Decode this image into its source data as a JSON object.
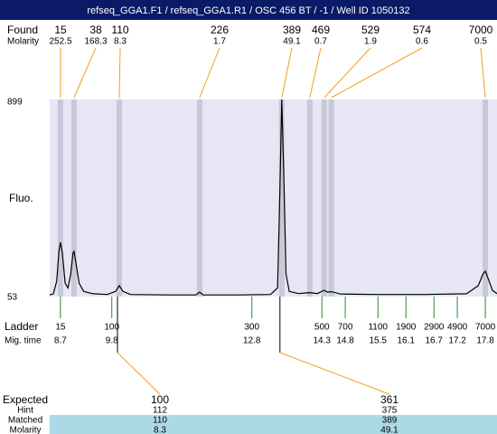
{
  "title": "refseq_GGA1.F1 / refseq_GGA1.R1 / OSC 456 BT / -1 / Well ID 1050132",
  "chart_data": {
    "type": "line",
    "ylabel": "Fluo.",
    "ylim": [
      53,
      899
    ],
    "yticks": [
      53,
      899
    ],
    "xlim": [
      8.47,
      18.05
    ],
    "color": "#000000",
    "band_color": "#c8c8d8",
    "plot_bg": "#e6e6f5",
    "x": [
      8.47,
      8.55,
      8.62,
      8.67,
      8.7,
      8.74,
      8.8,
      8.86,
      8.92,
      8.97,
      8.99,
      9.03,
      9.1,
      9.2,
      9.4,
      9.7,
      9.88,
      9.96,
      10.04,
      10.2,
      11.0,
      11.6,
      11.68,
      11.76,
      12.5,
      13.2,
      13.35,
      13.4,
      13.44,
      13.48,
      13.53,
      13.6,
      13.8,
      14.04,
      14.2,
      14.35,
      14.42,
      14.5,
      14.7,
      15.5,
      16.5,
      17.4,
      17.65,
      17.75,
      17.8,
      17.88,
      17.95,
      18.05
    ],
    "values": [
      60,
      65,
      120,
      250,
      286,
      240,
      110,
      90,
      150,
      240,
      247,
      200,
      110,
      75,
      65,
      62,
      75,
      100,
      75,
      62,
      60,
      60,
      72,
      60,
      60,
      62,
      90,
      500,
      899,
      600,
      150,
      75,
      66,
      70,
      66,
      80,
      72,
      74,
      64,
      62,
      62,
      65,
      100,
      150,
      162,
      120,
      80,
      66
    ]
  },
  "found": {
    "label": "Found",
    "molarity_label": "Molarity",
    "sizes": [
      15,
      38,
      110,
      226,
      389,
      469,
      529,
      574,
      7000
    ],
    "molarity": [
      252.5,
      168.3,
      8.3,
      1.7,
      49.1,
      0.7,
      1.9,
      0.6,
      0.5
    ],
    "mig_time": [
      8.7,
      8.99,
      9.96,
      11.68,
      13.44,
      14.04,
      14.35,
      14.5,
      17.8
    ]
  },
  "ladder": {
    "label": "Ladder",
    "time_label": "Mig. time",
    "sizes": [
      15,
      100,
      300,
      500,
      700,
      1100,
      1900,
      2900,
      4900,
      7000
    ],
    "mig_time": [
      8.7,
      9.8,
      12.8,
      14.3,
      14.8,
      15.5,
      16.1,
      16.7,
      17.2,
      17.8
    ]
  },
  "expected": {
    "label": "Expected",
    "hint_label": "Hint",
    "matched_label": "Matched",
    "molarity_label": "Molarity",
    "expected": [
      100,
      361
    ],
    "hint": [
      112,
      375
    ],
    "matched": [
      110,
      389
    ],
    "molarity": [
      8.3,
      49.1
    ]
  }
}
